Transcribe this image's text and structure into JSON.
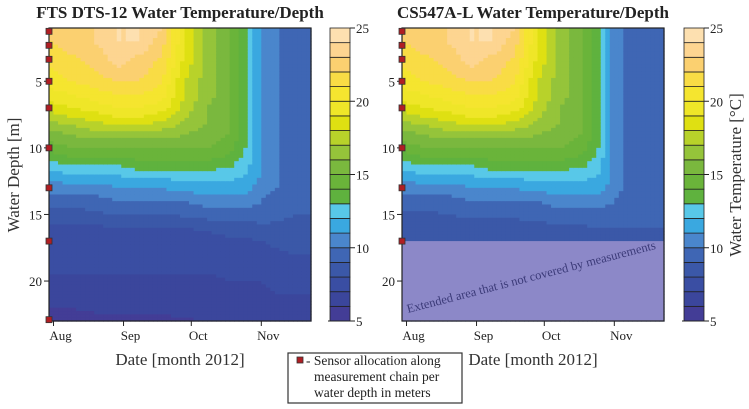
{
  "chart_data": [
    {
      "type": "heatmap",
      "title": "FTS DTS-12 Water Temperature/Depth",
      "xlabel": "Date [month 2012]",
      "ylabel": "Water Depth [m]",
      "x_unit": "days since 1 Aug 2012",
      "xlim": [
        -2,
        114
      ],
      "ylim": [
        23,
        1
      ],
      "xticks": [
        {
          "value": 0,
          "label": "Aug"
        },
        {
          "value": 31,
          "label": "Sep"
        },
        {
          "value": 61,
          "label": "Oct"
        },
        {
          "value": 92,
          "label": "Nov"
        }
      ],
      "yticks": [
        {
          "value": 5,
          "label": "5"
        },
        {
          "value": 10,
          "label": "10"
        },
        {
          "value": 15,
          "label": "15"
        },
        {
          "value": 20,
          "label": "20"
        }
      ],
      "sensor_depths": [
        1.25,
        2.3,
        3.35,
        5,
        7,
        10,
        13,
        17,
        22.9
      ],
      "days": [
        -2,
        8,
        18,
        28,
        38,
        48,
        58,
        68,
        78,
        85,
        92,
        99,
        106,
        114
      ],
      "depths": [
        1,
        2,
        3,
        4,
        5,
        6,
        7,
        8,
        9,
        10,
        11,
        12,
        13,
        14,
        15,
        16,
        17,
        18,
        19,
        20,
        21,
        22,
        23
      ],
      "temperature": [
        [
          22,
          22.5,
          23,
          24,
          24,
          23,
          19,
          16.5,
          15,
          13,
          11,
          10,
          9.5,
          9
        ],
        [
          22,
          22.5,
          23,
          24,
          24,
          22.5,
          19,
          16.5,
          15,
          13,
          11,
          10,
          9.5,
          9
        ],
        [
          21.5,
          22,
          22.5,
          23.5,
          23,
          22,
          19,
          16.5,
          15,
          13,
          11,
          10,
          9.5,
          9
        ],
        [
          21,
          21.5,
          22,
          23,
          22.5,
          21.5,
          18.5,
          16.5,
          15,
          13,
          11,
          10,
          9.5,
          9
        ],
        [
          20.5,
          21,
          21.5,
          22,
          22,
          21,
          18,
          16.5,
          15,
          13,
          11,
          10,
          9.5,
          9
        ],
        [
          19.5,
          20,
          20.5,
          21,
          21,
          20.5,
          18,
          16.5,
          15,
          13,
          11,
          10,
          9.5,
          9
        ],
        [
          18.5,
          19,
          19.5,
          20,
          20,
          19.5,
          17.5,
          16,
          15,
          13,
          11,
          10,
          9.5,
          9
        ],
        [
          17,
          17.5,
          18,
          18.5,
          18.5,
          18,
          17,
          16,
          15,
          13,
          11,
          10,
          9.5,
          9
        ],
        [
          15.5,
          16,
          16.5,
          16.5,
          16.5,
          16.5,
          16,
          15.5,
          15,
          13,
          11,
          10,
          9.5,
          9
        ],
        [
          14.5,
          15,
          15,
          15,
          15,
          15,
          15,
          15,
          14.5,
          13,
          11,
          10,
          9.5,
          9
        ],
        [
          13,
          13.5,
          13.5,
          13.5,
          14,
          14,
          14,
          14,
          13.5,
          12.5,
          11,
          10,
          9.5,
          9
        ],
        [
          11.5,
          12,
          12,
          12,
          12.5,
          12.5,
          12.5,
          12.5,
          12.5,
          12,
          11,
          10,
          9.5,
          9
        ],
        [
          10.5,
          10.5,
          10.5,
          11,
          11,
          11,
          11.5,
          11.5,
          11.5,
          11.5,
          10.5,
          10,
          9.5,
          9
        ],
        [
          9.5,
          9.5,
          9.5,
          10,
          10,
          10,
          10,
          10.5,
          10.5,
          10.5,
          10,
          9.5,
          9.5,
          9
        ],
        [
          8.5,
          8.5,
          8.8,
          9,
          9,
          9,
          9.2,
          9.5,
          9.5,
          9.5,
          9.5,
          9.2,
          9,
          9
        ],
        [
          7.8,
          7.8,
          7.8,
          8,
          8,
          8,
          8,
          8.2,
          8.5,
          8.5,
          8.8,
          8.8,
          8.8,
          8.8
        ],
        [
          7.5,
          7.5,
          7.5,
          7.5,
          7.5,
          7.5,
          7.5,
          7.5,
          7.8,
          7.8,
          8,
          8.3,
          8.3,
          8.3
        ],
        [
          7.3,
          7.3,
          7.3,
          7.3,
          7.3,
          7.3,
          7.3,
          7.3,
          7.3,
          7.3,
          7.6,
          7.8,
          8,
          8
        ],
        [
          7.1,
          7.1,
          7.1,
          7.1,
          7.1,
          7.1,
          7.1,
          7.1,
          7.1,
          7.1,
          7.2,
          7.4,
          7.6,
          7.8
        ],
        [
          6.9,
          6.9,
          6.9,
          6.9,
          6.9,
          6.9,
          6.9,
          6.9,
          7,
          7,
          7,
          7.1,
          7.1,
          7.2
        ],
        [
          6.5,
          6.5,
          6.6,
          6.6,
          6.6,
          6.6,
          6.6,
          6.7,
          6.8,
          6.8,
          6.9,
          7,
          7,
          7
        ],
        [
          6,
          6,
          6.2,
          6.2,
          6.2,
          6.2,
          6.3,
          6.4,
          6.5,
          6.6,
          6.7,
          6.8,
          6.9,
          6.9
        ],
        [
          5.6,
          5.6,
          5.7,
          5.8,
          5.8,
          5.8,
          5.9,
          6,
          6.1,
          6.2,
          6.3,
          6.4,
          6.5,
          6.5
        ]
      ],
      "colorbar": {
        "range": [
          5,
          25
        ],
        "ticks": [
          "25",
          "20",
          "15",
          "10",
          "5"
        ]
      }
    },
    {
      "type": "heatmap",
      "title": "CS547A-L Water Temperature/Depth",
      "xlabel": "Date [month 2012]",
      "ylabel": "",
      "x_unit": "days since 1 Aug 2012",
      "xlim": [
        -2,
        114
      ],
      "ylim": [
        23,
        1
      ],
      "xticks": [
        {
          "value": 0,
          "label": "Aug"
        },
        {
          "value": 31,
          "label": "Sep"
        },
        {
          "value": 61,
          "label": "Oct"
        },
        {
          "value": 92,
          "label": "Nov"
        }
      ],
      "yticks": [
        {
          "value": 5,
          "label": "5"
        },
        {
          "value": 10,
          "label": "10"
        },
        {
          "value": 15,
          "label": "15"
        },
        {
          "value": 20,
          "label": "20"
        }
      ],
      "sensor_depths": [
        1.25,
        2.3,
        3.35,
        5,
        7,
        10,
        13,
        17
      ],
      "measured_max_depth": 17,
      "annotation": "Extended area that is not covered by measurements",
      "days": [
        -2,
        8,
        18,
        28,
        38,
        48,
        58,
        68,
        78,
        85,
        92,
        99,
        106,
        114
      ],
      "depths": [
        1,
        2,
        3,
        4,
        5,
        6,
        7,
        8,
        9,
        10,
        11,
        12,
        13,
        14,
        15,
        16,
        17
      ],
      "temperature": [
        [
          22,
          22.5,
          23,
          24,
          24,
          23,
          19,
          16.5,
          15,
          13,
          10.5,
          9.5,
          9,
          9
        ],
        [
          22,
          22.5,
          23,
          24,
          24,
          22.5,
          19,
          16.5,
          15,
          13,
          10.5,
          9.5,
          9,
          9
        ],
        [
          21.5,
          22,
          22.5,
          23.5,
          23,
          22,
          19,
          16.5,
          15,
          13,
          10.5,
          9.5,
          9,
          9
        ],
        [
          21,
          21.5,
          22,
          23,
          22.5,
          21.5,
          18.5,
          16.5,
          15,
          13,
          10.5,
          9.5,
          9,
          9
        ],
        [
          20.5,
          21,
          21.5,
          22,
          22,
          21,
          18,
          16.5,
          15,
          13,
          10.5,
          9.5,
          9,
          9
        ],
        [
          19.5,
          20,
          20.5,
          21,
          21,
          20.5,
          18,
          16.5,
          15,
          13,
          10.5,
          9.5,
          9,
          9
        ],
        [
          18.5,
          19,
          19.5,
          20,
          20,
          19.5,
          17.5,
          16,
          15,
          13,
          10.5,
          9.5,
          9,
          9
        ],
        [
          17,
          17.5,
          18,
          18.5,
          18.5,
          18,
          17,
          16,
          15,
          13,
          10.5,
          9.5,
          9,
          9
        ],
        [
          15.5,
          16,
          16.5,
          16.5,
          16.5,
          16.5,
          16,
          15.5,
          15,
          13,
          10.5,
          9.5,
          9,
          9
        ],
        [
          14.5,
          15,
          15,
          15,
          15,
          15,
          15,
          15,
          14.5,
          13,
          10.5,
          9.5,
          9,
          9
        ],
        [
          13,
          13.5,
          13.5,
          13.5,
          14,
          14,
          14,
          14,
          13.5,
          12.5,
          10.5,
          9.5,
          9,
          9
        ],
        [
          11.5,
          12,
          12,
          12,
          12.5,
          12.5,
          12.5,
          12.5,
          12.5,
          12,
          10.5,
          9.5,
          9,
          9
        ],
        [
          10.5,
          10.5,
          10.5,
          11,
          11,
          11,
          11.5,
          11.5,
          11.5,
          11.5,
          10.5,
          9.5,
          9,
          9
        ],
        [
          9.5,
          9.5,
          9.5,
          10,
          10,
          10,
          10,
          10.5,
          10.5,
          10.5,
          10,
          9.5,
          9,
          9
        ],
        [
          8.8,
          8.8,
          9,
          9.2,
          9.2,
          9.2,
          9.4,
          9.5,
          9.5,
          9.5,
          9.5,
          9.2,
          9,
          9
        ],
        [
          8.5,
          8.5,
          8.5,
          8.6,
          8.6,
          8.6,
          8.7,
          8.8,
          8.9,
          9,
          9,
          9,
          9,
          9
        ],
        [
          8.3,
          8.3,
          8.3,
          8.3,
          8.3,
          8.3,
          8.4,
          8.5,
          8.6,
          8.7,
          8.8,
          8.8,
          8.8,
          8.8
        ]
      ],
      "colorbar": {
        "range": [
          5,
          25
        ],
        "ticks": [
          "25",
          "20",
          "15",
          "10",
          "5"
        ],
        "label": "Water Temperature [°C]"
      }
    }
  ],
  "colormap": [
    "#433d96",
    "#3b469c",
    "#3a4ea3",
    "#3b58a8",
    "#3f66b4",
    "#4a86cc",
    "#3aa8e0",
    "#58c8e8",
    "#5fb23e",
    "#6ab43a",
    "#7ab83e",
    "#95c43a",
    "#b8d22a",
    "#dfe012",
    "#efe628",
    "#f5e52f",
    "#f9dc45",
    "#fbd070",
    "#fdd591",
    "#fde0b0"
  ],
  "colors": {
    "sensor": "#b01e23",
    "overlay": "#8c88c8"
  },
  "legend": {
    "line1": "- Sensor allocation along",
    "line2": "measurement chain per",
    "line3": "water depth in meters"
  }
}
